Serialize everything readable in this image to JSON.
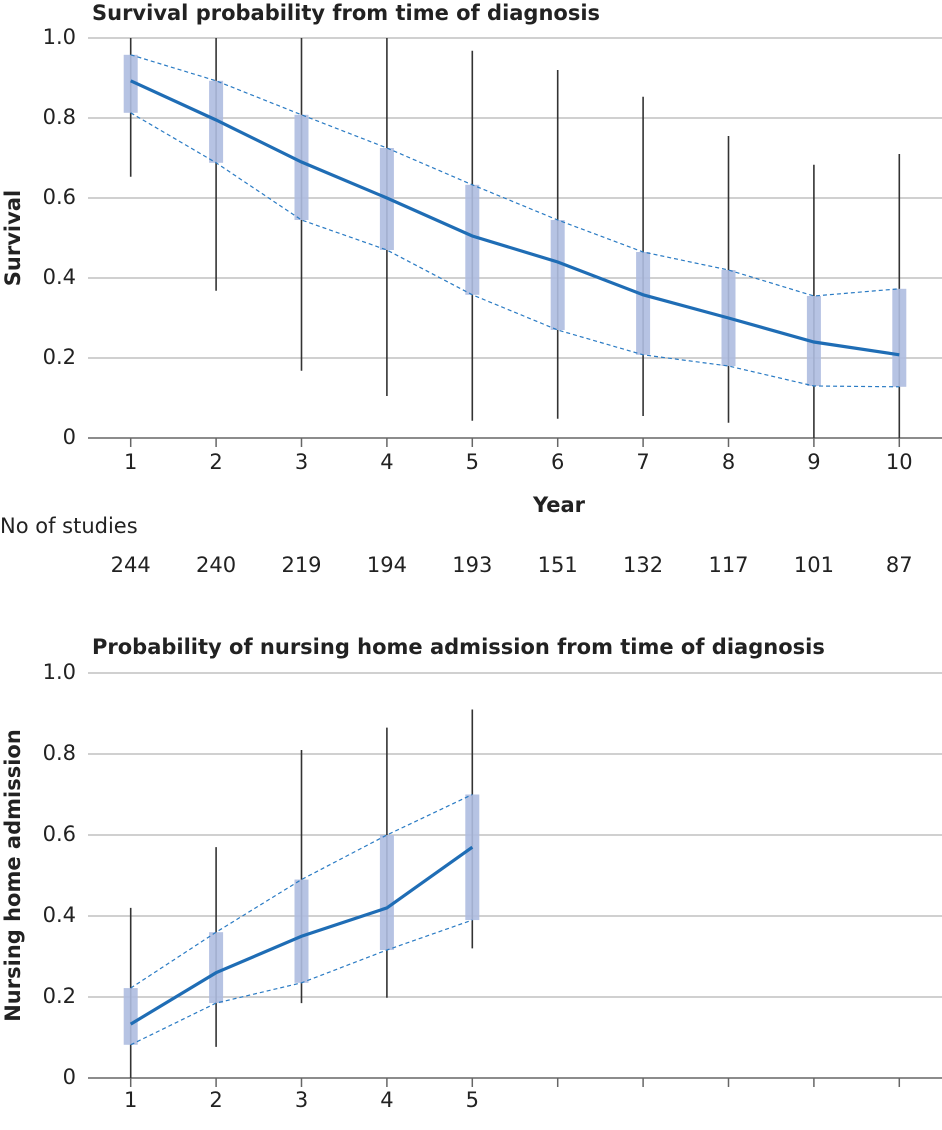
{
  "chart_data": [
    {
      "type": "line",
      "title": "Survival probability from time of diagnosis",
      "y_label": "Survival",
      "x_label": "Year",
      "x": [
        1,
        2,
        3,
        4,
        5,
        6,
        7,
        8,
        9,
        10
      ],
      "mean": [
        0.893,
        0.795,
        0.69,
        0.6,
        0.505,
        0.44,
        0.358,
        0.3,
        0.24,
        0.208
      ],
      "ci_lower": [
        0.813,
        0.688,
        0.545,
        0.47,
        0.358,
        0.27,
        0.208,
        0.18,
        0.13,
        0.128
      ],
      "ci_upper": [
        0.958,
        0.893,
        0.808,
        0.725,
        0.633,
        0.545,
        0.465,
        0.42,
        0.355,
        0.373
      ],
      "pi_lower": [
        0.653,
        0.368,
        0.168,
        0.105,
        0.043,
        0.048,
        0.055,
        0.038,
        0,
        0
      ],
      "pi_upper": [
        1.0,
        1.0,
        1.0,
        1.0,
        0.968,
        0.92,
        0.853,
        0.755,
        0.683,
        0.71
      ],
      "count_label": "No of studies",
      "counts": [
        244,
        240,
        219,
        194,
        193,
        151,
        132,
        117,
        101,
        87
      ],
      "xlim": [
        0.5,
        10.5
      ],
      "xticks": [
        1,
        2,
        3,
        4,
        5,
        6,
        7,
        8,
        9,
        10
      ],
      "ylim": [
        0,
        1
      ],
      "yticks": [
        0,
        0.2,
        0.4,
        0.6,
        0.8,
        {
          "value": 1,
          "label": "1.0"
        }
      ],
      "grid": true,
      "line_color": "#1f6db5",
      "ci_color": "#2a7bc4",
      "box_color": "#aebde0",
      "pi_color": "#333333"
    },
    {
      "type": "line",
      "title": "Probability of nursing home admission from time of diagnosis",
      "y_label": "Nursing home admission",
      "x": [
        1,
        2,
        3,
        4,
        5
      ],
      "mean": [
        0.133,
        0.26,
        0.35,
        0.42,
        0.57
      ],
      "ci_lower": [
        0.082,
        0.185,
        0.235,
        0.316,
        0.39
      ],
      "ci_upper": [
        0.222,
        0.36,
        0.49,
        0.6,
        0.7
      ],
      "pi_lower": [
        0,
        0.077,
        0.185,
        0.198,
        0.32
      ],
      "pi_upper": [
        0.42,
        0.57,
        0.81,
        0.865,
        0.91
      ],
      "xlim": [
        0.5,
        10.5
      ],
      "xticks": [
        1,
        2,
        3,
        4,
        5,
        {
          "value": 6,
          "label": null
        },
        {
          "value": 7,
          "label": null
        },
        {
          "value": 8,
          "label": null
        },
        {
          "value": 9,
          "label": null
        },
        {
          "value": 10,
          "label": null
        }
      ],
      "ylim": [
        0,
        1
      ],
      "yticks": [
        0,
        0.2,
        0.4,
        0.6,
        0.8,
        {
          "value": 1,
          "label": "1.0"
        }
      ],
      "grid": true,
      "line_color": "#1f6db5",
      "ci_color": "#2a7bc4",
      "box_color": "#aebde0",
      "pi_color": "#333333"
    }
  ]
}
